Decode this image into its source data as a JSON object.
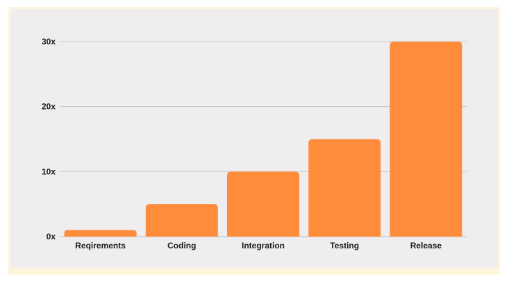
{
  "chart_data": {
    "type": "bar",
    "title": "",
    "xlabel": "",
    "ylabel": "",
    "categories": [
      "Reqirements",
      "Coding",
      "Integration",
      "Testing",
      "Release"
    ],
    "values": [
      1,
      5,
      10,
      15,
      30
    ],
    "ylim": [
      0,
      30
    ],
    "y_ticks": [
      0,
      10,
      20,
      30
    ],
    "y_tick_labels": [
      "0x",
      "10x",
      "20x",
      "30x"
    ],
    "grid": true,
    "legend": "none",
    "colors": {
      "bar": "#ff8c3a",
      "grid": "#c9c6c6",
      "panel": "#efeded",
      "frame": "#fff6d9",
      "text": "#1c1c1c"
    }
  }
}
